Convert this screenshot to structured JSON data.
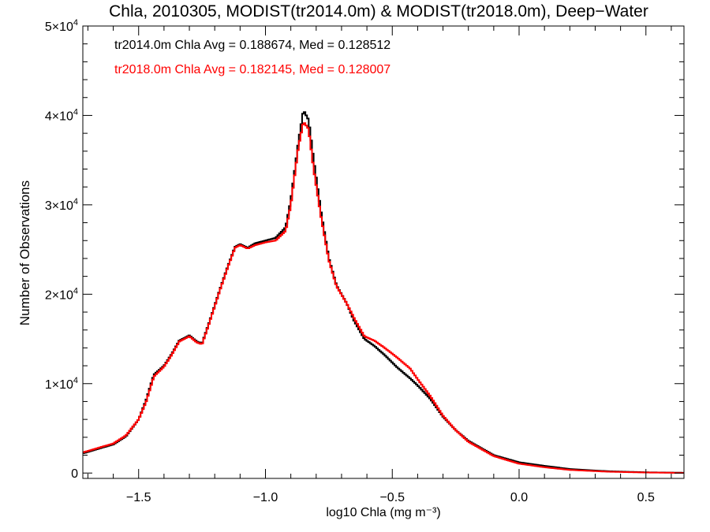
{
  "chart_data": {
    "type": "line",
    "title": "Chla, 2010305, MODIST(tr2014.0m) & MODIST(tr2018.0m), Deep−Water",
    "xlabel": "log10 Chla (mg m⁻³)",
    "ylabel": "Number of Observations",
    "xlim": [
      -1.72,
      0.65
    ],
    "ylim": [
      -600,
      50000
    ],
    "xticks": [
      -1.5,
      -1.0,
      -0.5,
      0.0,
      0.5
    ],
    "xtick_labels": [
      "−1.5",
      "−1.0",
      "−0.5",
      "0.0",
      "0.5"
    ],
    "yticks": [
      0,
      10000,
      20000,
      30000,
      40000,
      50000
    ],
    "ytick_labels": [
      {
        "base": "0",
        "exp": ""
      },
      {
        "base": "1×10",
        "exp": "4"
      },
      {
        "base": "2×10",
        "exp": "4"
      },
      {
        "base": "3×10",
        "exp": "4"
      },
      {
        "base": "4×10",
        "exp": "4"
      },
      {
        "base": "5×10",
        "exp": "4"
      }
    ],
    "step_style": "histogram",
    "series": [
      {
        "name": "tr2014.0m",
        "color": "#000000",
        "annotation": "tr2014.0m Chla Avg = 0.188674, Med = 0.128512",
        "points": [
          [
            -1.72,
            2200
          ],
          [
            -1.66,
            2700
          ],
          [
            -1.6,
            3200
          ],
          [
            -1.55,
            4100
          ],
          [
            -1.5,
            6000
          ],
          [
            -1.47,
            8200
          ],
          [
            -1.44,
            11000
          ],
          [
            -1.4,
            12000
          ],
          [
            -1.37,
            13300
          ],
          [
            -1.34,
            14800
          ],
          [
            -1.3,
            15400
          ],
          [
            -1.27,
            14700
          ],
          [
            -1.25,
            14500
          ],
          [
            -1.22,
            17000
          ],
          [
            -1.18,
            20500
          ],
          [
            -1.15,
            23000
          ],
          [
            -1.12,
            25300
          ],
          [
            -1.1,
            25600
          ],
          [
            -1.07,
            25200
          ],
          [
            -1.04,
            25700
          ],
          [
            -1.0,
            26000
          ],
          [
            -0.96,
            26300
          ],
          [
            -0.92,
            27500
          ],
          [
            -0.9,
            30500
          ],
          [
            -0.87,
            37000
          ],
          [
            -0.85,
            40600
          ],
          [
            -0.83,
            39500
          ],
          [
            -0.81,
            35000
          ],
          [
            -0.78,
            29000
          ],
          [
            -0.75,
            24000
          ],
          [
            -0.72,
            21000
          ],
          [
            -0.68,
            19000
          ],
          [
            -0.65,
            17000
          ],
          [
            -0.61,
            15000
          ],
          [
            -0.57,
            14200
          ],
          [
            -0.53,
            13200
          ],
          [
            -0.48,
            11800
          ],
          [
            -0.43,
            10600
          ],
          [
            -0.4,
            9800
          ],
          [
            -0.35,
            8300
          ],
          [
            -0.3,
            6300
          ],
          [
            -0.25,
            4800
          ],
          [
            -0.2,
            3600
          ],
          [
            -0.1,
            2000
          ],
          [
            0.0,
            1200
          ],
          [
            0.1,
            800
          ],
          [
            0.2,
            450
          ],
          [
            0.35,
            200
          ],
          [
            0.5,
            80
          ],
          [
            0.65,
            30
          ]
        ]
      },
      {
        "name": "tr2018.0m",
        "color": "#ff0000",
        "annotation": "tr2018.0m Chla Avg = 0.182145, Med = 0.128007",
        "points": [
          [
            -1.72,
            2300
          ],
          [
            -1.66,
            2800
          ],
          [
            -1.6,
            3300
          ],
          [
            -1.55,
            4200
          ],
          [
            -1.5,
            6000
          ],
          [
            -1.47,
            8000
          ],
          [
            -1.44,
            10800
          ],
          [
            -1.4,
            11900
          ],
          [
            -1.37,
            13200
          ],
          [
            -1.34,
            14700
          ],
          [
            -1.3,
            15300
          ],
          [
            -1.27,
            14600
          ],
          [
            -1.25,
            14400
          ],
          [
            -1.22,
            16900
          ],
          [
            -1.18,
            20400
          ],
          [
            -1.15,
            22900
          ],
          [
            -1.12,
            25200
          ],
          [
            -1.1,
            25500
          ],
          [
            -1.07,
            25100
          ],
          [
            -1.04,
            25500
          ],
          [
            -1.0,
            25800
          ],
          [
            -0.96,
            26000
          ],
          [
            -0.92,
            27100
          ],
          [
            -0.9,
            30000
          ],
          [
            -0.87,
            36500
          ],
          [
            -0.85,
            39300
          ],
          [
            -0.83,
            38500
          ],
          [
            -0.81,
            34000
          ],
          [
            -0.78,
            28500
          ],
          [
            -0.75,
            23800
          ],
          [
            -0.72,
            20900
          ],
          [
            -0.68,
            19000
          ],
          [
            -0.65,
            17300
          ],
          [
            -0.61,
            15300
          ],
          [
            -0.57,
            14800
          ],
          [
            -0.53,
            14000
          ],
          [
            -0.48,
            12900
          ],
          [
            -0.43,
            11700
          ],
          [
            -0.4,
            10500
          ],
          [
            -0.35,
            8600
          ],
          [
            -0.3,
            6400
          ],
          [
            -0.25,
            4800
          ],
          [
            -0.2,
            3500
          ],
          [
            -0.1,
            1900
          ],
          [
            0.0,
            1050
          ],
          [
            0.1,
            650
          ],
          [
            0.2,
            350
          ],
          [
            0.35,
            150
          ],
          [
            0.5,
            60
          ],
          [
            0.65,
            20
          ]
        ]
      }
    ]
  }
}
